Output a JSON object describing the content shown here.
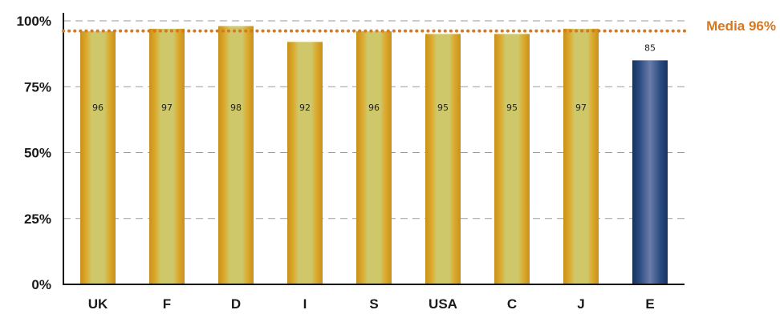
{
  "chart_data": {
    "type": "bar",
    "categories": [
      "UK",
      "F",
      "D",
      "I",
      "S",
      "USA",
      "C",
      "J",
      "E"
    ],
    "values": [
      96,
      97,
      98,
      92,
      96,
      95,
      95,
      97,
      85
    ],
    "highlight_category": "E",
    "ylim": [
      0,
      100
    ],
    "yticks": [
      0,
      25,
      50,
      75,
      100
    ],
    "ytick_labels": [
      "0%",
      "25%",
      "50%",
      "75%",
      "100%"
    ],
    "grid": true,
    "average": {
      "value": 96,
      "label": "Media 96%"
    },
    "colors": {
      "bar_outer": "#d4a020",
      "bar_inner": "#c9c65a",
      "highlight_outer": "#1e3a66",
      "highlight_inner": "#5a6e9c",
      "average_line": "#d8781e"
    }
  }
}
